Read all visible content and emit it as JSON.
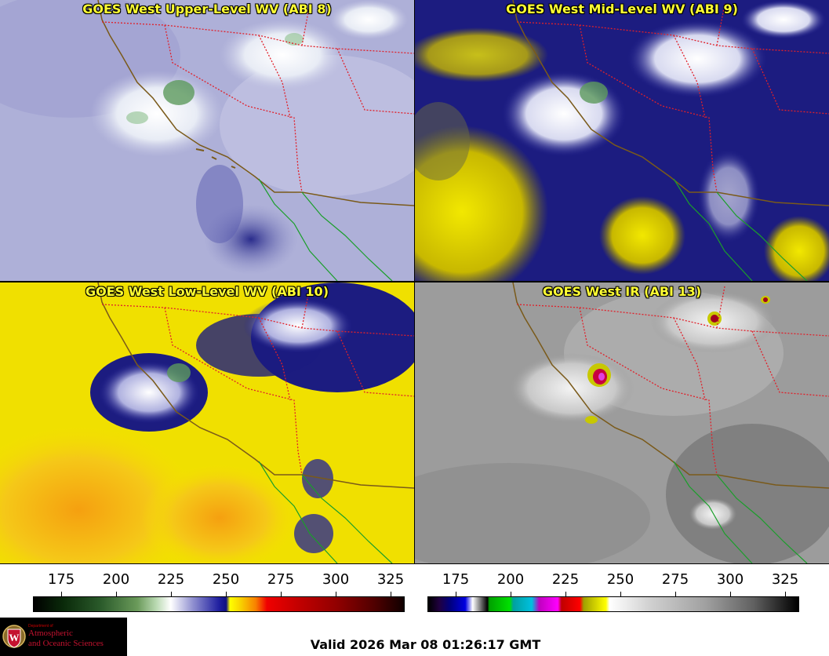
{
  "panels": [
    {
      "title": "GOES West Upper-Level WV (ABI 8)"
    },
    {
      "title": "GOES West Mid-Level WV (ABI 9)"
    },
    {
      "title": "GOES West Low-Level WV (ABI 10)"
    },
    {
      "title": "GOES West IR (ABI 13)"
    }
  ],
  "colorbars": {
    "wv": {
      "ticks": [
        "175",
        "200",
        "225",
        "250",
        "275",
        "300",
        "325"
      ]
    },
    "ir": {
      "ticks": [
        "175",
        "200",
        "225",
        "250",
        "275",
        "300",
        "325"
      ]
    }
  },
  "logo": {
    "dept": "Department of",
    "line1": "Atmospheric",
    "line2": "and Oceanic Sciences",
    "seal_letter": "W"
  },
  "footer": {
    "valid": "Valid 2026 Mar 08 01:26:17 GMT"
  },
  "colors": {
    "coastline": "#7a5a1a",
    "state_borders": "#e0202a",
    "mexico_coast": "#1a9e2a",
    "title_text": "#ffff33"
  }
}
